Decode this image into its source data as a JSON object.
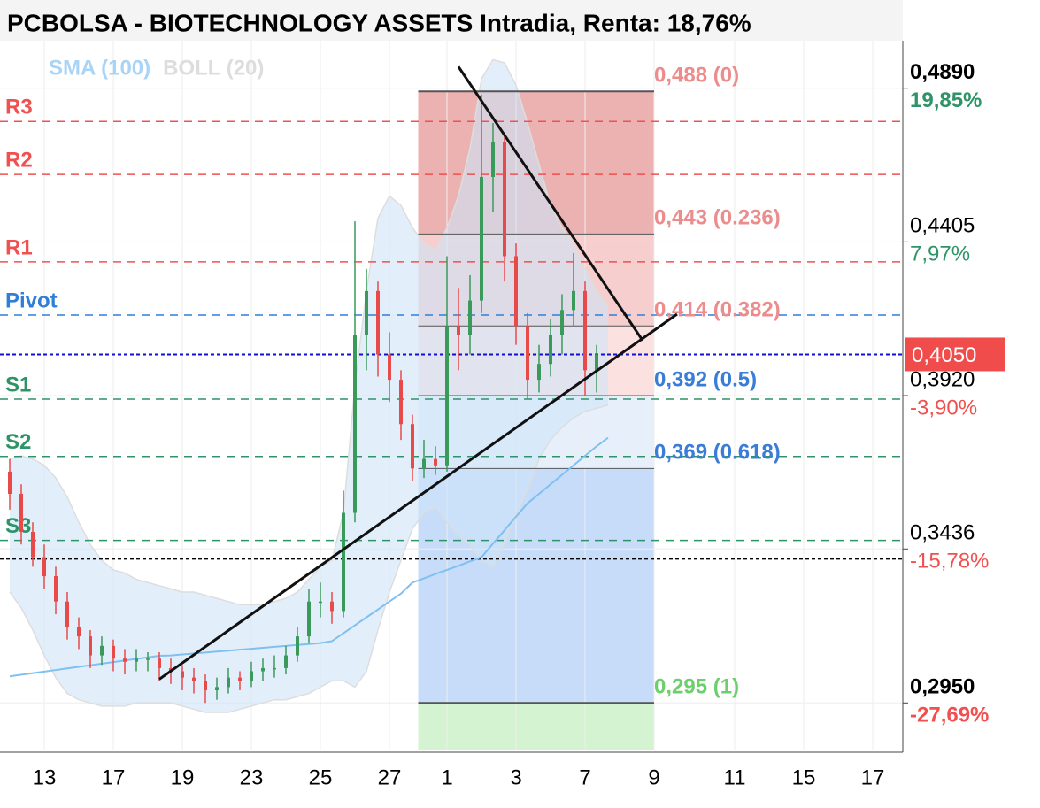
{
  "chart_data": {
    "type": "candlestick",
    "title": "PCBOLSA - BIOTECHNOLOGY ASSETS Intradia, Renta: 18,76%",
    "legend": [
      {
        "name": "SMA (100)",
        "color": "#a9d4f5"
      },
      {
        "name": "BOLL (20)",
        "color": "#dddddd"
      }
    ],
    "up_color": "#3a9a5a",
    "down_color": "#e84a4a",
    "ylim": [
      0.28,
      0.504
    ],
    "categories": [
      null,
      null,
      null,
      "13",
      null,
      null,
      null,
      null,
      null,
      "17",
      null,
      null,
      null,
      null,
      null,
      "19",
      null,
      null,
      null,
      null,
      null,
      "23",
      null,
      null,
      null,
      null,
      null,
      "25",
      null,
      null,
      null,
      null,
      null,
      "27",
      null,
      null,
      null,
      null,
      "1",
      null,
      null,
      null,
      null,
      null,
      "3",
      null,
      null,
      null,
      null,
      null,
      "7",
      null,
      null,
      null,
      null,
      null,
      "9",
      null,
      null,
      null,
      null,
      null,
      null,
      "11",
      null,
      null,
      null,
      null,
      null,
      "15",
      null,
      null,
      null,
      null,
      null,
      "17",
      null,
      null
    ],
    "ohlc": [
      [
        0.368,
        0.372,
        0.356,
        0.361
      ],
      [
        0.361,
        0.364,
        0.345,
        0.349
      ],
      [
        0.349,
        0.352,
        0.338,
        0.341
      ],
      [
        0.341,
        0.345,
        0.331,
        0.335
      ],
      [
        0.335,
        0.338,
        0.323,
        0.327
      ],
      [
        0.327,
        0.33,
        0.315,
        0.319
      ],
      [
        0.319,
        0.322,
        0.312,
        0.316
      ],
      [
        0.316,
        0.318,
        0.306,
        0.31
      ],
      [
        0.31,
        0.316,
        0.307,
        0.313
      ],
      [
        0.313,
        0.315,
        0.305,
        0.309
      ],
      [
        0.309,
        0.312,
        0.304,
        0.308
      ],
      [
        0.308,
        0.312,
        0.305,
        0.309
      ],
      [
        0.309,
        0.311,
        0.305,
        0.309
      ],
      [
        0.309,
        0.311,
        0.302,
        0.306
      ],
      [
        0.306,
        0.309,
        0.301,
        0.305
      ],
      [
        0.305,
        0.307,
        0.299,
        0.303
      ],
      [
        0.303,
        0.306,
        0.298,
        0.302
      ],
      [
        0.302,
        0.304,
        0.295,
        0.299
      ],
      [
        0.299,
        0.303,
        0.296,
        0.3
      ],
      [
        0.3,
        0.306,
        0.298,
        0.303
      ],
      [
        0.303,
        0.305,
        0.299,
        0.302
      ],
      [
        0.302,
        0.308,
        0.3,
        0.305
      ],
      [
        0.305,
        0.309,
        0.302,
        0.306
      ],
      [
        0.306,
        0.31,
        0.303,
        0.306
      ],
      [
        0.306,
        0.313,
        0.304,
        0.31
      ],
      [
        0.31,
        0.319,
        0.308,
        0.316
      ],
      [
        0.316,
        0.331,
        0.314,
        0.327
      ],
      [
        0.327,
        0.333,
        0.322,
        0.327
      ],
      [
        0.327,
        0.33,
        0.32,
        0.324
      ],
      [
        0.324,
        0.362,
        0.322,
        0.355
      ],
      [
        0.355,
        0.447,
        0.352,
        0.411
      ],
      [
        0.411,
        0.432,
        0.4,
        0.425
      ],
      [
        0.425,
        0.428,
        0.398,
        0.405
      ],
      [
        0.405,
        0.412,
        0.39,
        0.397
      ],
      [
        0.397,
        0.4,
        0.378,
        0.383
      ],
      [
        0.383,
        0.386,
        0.365,
        0.369
      ],
      [
        0.369,
        0.378,
        0.366,
        0.372
      ],
      [
        0.372,
        0.376,
        0.367,
        0.37
      ],
      [
        0.37,
        0.436,
        0.368,
        0.414
      ],
      [
        0.414,
        0.426,
        0.4,
        0.411
      ],
      [
        0.411,
        0.43,
        0.405,
        0.422
      ],
      [
        0.422,
        0.487,
        0.418,
        0.461
      ],
      [
        0.461,
        0.478,
        0.45,
        0.472
      ],
      [
        0.472,
        0.475,
        0.428,
        0.436
      ],
      [
        0.436,
        0.44,
        0.408,
        0.414
      ],
      [
        0.414,
        0.418,
        0.391,
        0.397
      ],
      [
        0.397,
        0.408,
        0.393,
        0.402
      ],
      [
        0.402,
        0.416,
        0.398,
        0.411
      ],
      [
        0.411,
        0.424,
        0.405,
        0.419
      ],
      [
        0.419,
        0.437,
        0.414,
        0.425
      ],
      [
        0.425,
        0.428,
        0.392,
        0.4
      ],
      [
        0.4,
        0.408,
        0.393,
        0.405
      ],
      null,
      null,
      null,
      null,
      null,
      null,
      null,
      null,
      null,
      null,
      null,
      null,
      null,
      null,
      null,
      null,
      null,
      null,
      null,
      null,
      null,
      null,
      null,
      null,
      null,
      null
    ],
    "sma": [
      0.3034,
      0.3039,
      0.3044,
      0.3049,
      0.3054,
      0.3059,
      0.3064,
      0.3069,
      0.3074,
      0.3079,
      0.3084,
      0.3089,
      0.3094,
      0.3099,
      0.31,
      0.3103,
      0.3106,
      0.3109,
      0.3112,
      0.3115,
      0.3118,
      0.3121,
      0.3124,
      0.3127,
      0.313,
      0.3133,
      0.3136,
      0.3139,
      0.3145,
      0.317,
      0.3195,
      0.322,
      0.3245,
      0.327,
      0.3295,
      0.333,
      0.3343,
      0.3357,
      0.337,
      0.3383,
      0.3397,
      0.341,
      0.3453,
      0.3495,
      0.3538,
      0.358,
      0.361,
      0.364,
      0.367,
      0.37,
      0.373,
      0.376,
      0.3787,
      null,
      null,
      null,
      null,
      null,
      null,
      null,
      null,
      null,
      null,
      null,
      null,
      null,
      null,
      null,
      null,
      null,
      null,
      null,
      null,
      null,
      null,
      null,
      null,
      null
    ],
    "boll_upper": [
      0.372,
      0.373,
      0.372,
      0.37,
      0.366,
      0.36,
      0.352,
      0.345,
      0.34,
      0.337,
      0.336,
      0.334,
      0.333,
      0.332,
      0.331,
      0.33,
      0.33,
      0.329,
      0.328,
      0.327,
      0.326,
      0.326,
      0.326,
      0.327,
      0.328,
      0.33,
      0.334,
      0.338,
      0.34,
      0.355,
      0.395,
      0.425,
      0.448,
      0.455,
      0.452,
      0.445,
      0.44,
      0.438,
      0.445,
      0.455,
      0.47,
      0.492,
      0.498,
      0.497,
      0.49,
      0.478,
      0.465,
      0.452,
      0.445,
      0.44,
      0.432,
      0.425,
      0.42,
      null,
      null,
      null,
      null,
      null,
      null,
      null,
      null,
      null,
      null,
      null,
      null,
      null,
      null,
      null,
      null,
      null,
      null,
      null,
      null,
      null,
      null,
      null,
      null,
      null
    ],
    "boll_lower": [
      0.33,
      0.325,
      0.318,
      0.31,
      0.303,
      0.298,
      0.296,
      0.295,
      0.294,
      0.294,
      0.294,
      0.295,
      0.295,
      0.295,
      0.295,
      0.294,
      0.293,
      0.292,
      0.292,
      0.292,
      0.293,
      0.294,
      0.295,
      0.296,
      0.296,
      0.297,
      0.298,
      0.3,
      0.302,
      0.302,
      0.3,
      0.305,
      0.318,
      0.33,
      0.34,
      0.35,
      0.355,
      0.357,
      0.352,
      0.348,
      0.345,
      0.34,
      0.338,
      0.345,
      0.355,
      0.362,
      0.372,
      0.378,
      0.382,
      0.385,
      0.387,
      0.388,
      0.389,
      null,
      null,
      null,
      null,
      null,
      null,
      null,
      null,
      null,
      null,
      null,
      null,
      null,
      null,
      null,
      null,
      null,
      null,
      null,
      null,
      null,
      null,
      null,
      null,
      null
    ],
    "pivots": [
      {
        "label": "R3",
        "value": 0.4785,
        "color": "#f05050"
      },
      {
        "label": "R2",
        "value": 0.4618,
        "color": "#f05050"
      },
      {
        "label": "R1",
        "value": 0.4342,
        "color": "#f05050"
      },
      {
        "label": "Pivot",
        "value": 0.4174,
        "color": "#2f7fd8"
      },
      {
        "label": "S1",
        "value": 0.3909,
        "color": "#2e9467"
      },
      {
        "label": "S2",
        "value": 0.3728,
        "color": "#2e9467"
      },
      {
        "label": "S3",
        "value": 0.3463,
        "color": "#2e9467"
      }
    ],
    "fib": {
      "x": [
        35.5,
        56
      ],
      "levels": [
        {
          "value": 0.488,
          "label": "0,488 (0)",
          "color": "#ec8c8c",
          "fill": "#e9a3a3"
        },
        {
          "value": 0.443,
          "label": "0,443 (0.236)",
          "color": "#ec8c8c",
          "fill": "#f4c6c6"
        },
        {
          "value": 0.414,
          "label": "0,414 (0.382)",
          "color": "#ec8c8c",
          "fill": "#fbdcdc"
        },
        {
          "value": 0.392,
          "label": "0,392 (0.5)",
          "color": "#3a7dd8",
          "fill": "#e3edf9"
        },
        {
          "value": 0.369,
          "label": "0,369 (0.618)",
          "color": "#3a7dd8",
          "fill": "#bcd6f8"
        },
        {
          "value": 0.295,
          "label": "0,295 (1)",
          "color": "#6ccf6c",
          "fill": "#cdf1c8"
        }
      ]
    },
    "trendlines": [
      {
        "x": [
          13,
          58
        ],
        "y": [
          0.3025,
          0.4177
        ]
      },
      {
        "x": [
          39,
          55
        ],
        "y": [
          0.4958,
          0.4094
        ]
      }
    ],
    "reference_lines": [
      {
        "value": 0.3405,
        "color": "#000000"
      },
      {
        "value": 0.405,
        "color": "#1010d0"
      }
    ],
    "price_axis": [
      {
        "price": {
          "value": 0.489,
          "label": "0,4890"
        },
        "change": {
          "value": 19.85,
          "label": "19,85%"
        },
        "color": "#2e9467",
        "bold": true
      },
      {
        "price": {
          "value": 0.4405,
          "label": "0,4405"
        },
        "change": {
          "value": 7.97,
          "label": "7,97%"
        },
        "color": "#2e9467",
        "bold": false
      },
      {
        "price": {
          "value": 0.392,
          "label": "0,3920"
        },
        "change": {
          "value": -3.9,
          "label": "-3,90%"
        },
        "color": "#f05050",
        "bold": false
      },
      {
        "price": {
          "value": 0.3436,
          "label": "0,3436"
        },
        "change": {
          "value": -15.78,
          "label": "-15,78%"
        },
        "color": "#f05050",
        "bold": false
      },
      {
        "price": {
          "value": 0.295,
          "label": "0,2950"
        },
        "change": {
          "value": -27.69,
          "label": "-27,69%"
        },
        "color": "#f05050",
        "bold": true
      }
    ],
    "last_price": {
      "value": 0.405,
      "label": "0,4050",
      "color": "#f04c4c"
    }
  }
}
